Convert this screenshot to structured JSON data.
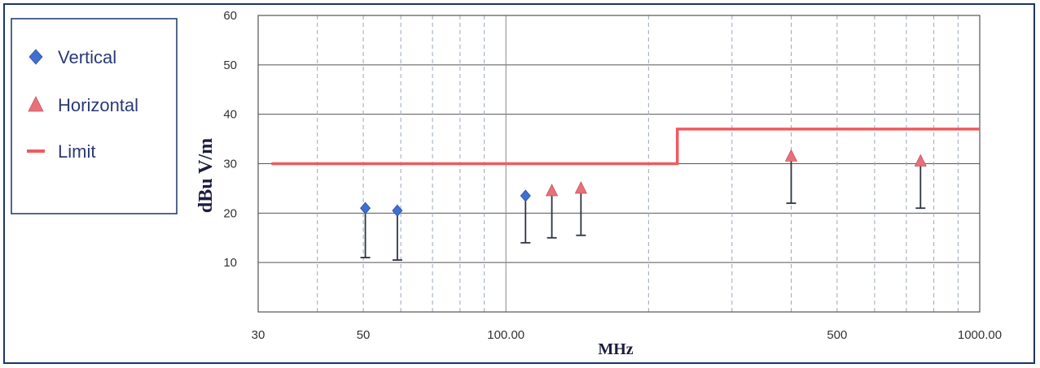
{
  "chart_data": {
    "type": "scatter",
    "title": "",
    "xlabel": "MHz",
    "ylabel": "dBu V/m",
    "xscale": "log",
    "xlim": [
      30,
      1000
    ],
    "ylim": [
      0,
      60
    ],
    "x_ticks": [
      {
        "value": 30,
        "label": "30"
      },
      {
        "value": 50,
        "label": "50"
      },
      {
        "value": 100,
        "label": "100.00"
      },
      {
        "value": 500,
        "label": "500"
      },
      {
        "value": 1000,
        "label": "1000.00"
      }
    ],
    "y_ticks": [
      10,
      20,
      30,
      40,
      50,
      60
    ],
    "grid": true,
    "legend_position": "left",
    "series": [
      {
        "name": "Vertical",
        "marker": "diamond",
        "color": "#3f6fd0",
        "points": [
          {
            "x": 50.5,
            "peak": 21.0,
            "floor": 11.0
          },
          {
            "x": 59,
            "peak": 20.5,
            "floor": 10.5
          },
          {
            "x": 110,
            "peak": 23.5,
            "floor": 14.0
          }
        ]
      },
      {
        "name": "Horizontal",
        "marker": "triangle",
        "color": "#e8707a",
        "points": [
          {
            "x": 125,
            "peak": 24.5,
            "floor": 15.0
          },
          {
            "x": 144,
            "peak": 25.0,
            "floor": 15.5
          },
          {
            "x": 400,
            "peak": 31.5,
            "floor": 22.0
          },
          {
            "x": 750,
            "peak": 30.5,
            "floor": 21.0
          }
        ]
      }
    ],
    "limit": {
      "name": "Limit",
      "color": "#ef5a5f",
      "segments": [
        {
          "x_start": 32,
          "x_end": 230,
          "y": 30
        },
        {
          "x_start": 230,
          "x_end": 1000,
          "y": 37
        }
      ]
    }
  }
}
